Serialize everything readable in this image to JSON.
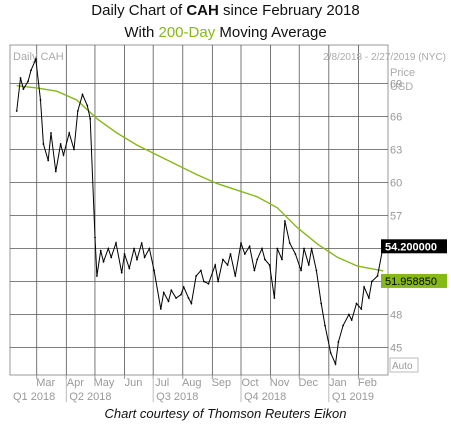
{
  "title": {
    "line1_prefix": "Daily Chart of ",
    "line1_ticker": "CAH",
    "line1_suffix": " since February 2018",
    "line2_prefix": "With ",
    "line2_highlight": "200-Day",
    "line2_suffix": " Moving Average"
  },
  "credit": "Chart courtesy of Thomson Reuters Eikon",
  "chart_data": {
    "type": "line",
    "panel_label": "Daily CAH",
    "date_range": "2/8/2018 - 2/27/2019 (NYC)",
    "ylabel_top": "Price",
    "ylabel_unit": "USD",
    "auto_label": "Auto",
    "ylim": [
      42.5,
      72.5
    ],
    "yticks": [
      45,
      48,
      51,
      54,
      57,
      60,
      63,
      66,
      69
    ],
    "grid": true,
    "months": [
      "Mar",
      "Apr",
      "May",
      "Jun",
      "Jul",
      "Aug",
      "Sep",
      "Oct",
      "Nov",
      "Dec",
      "Jan",
      "Feb"
    ],
    "quarters": [
      "Q1 2018",
      "Q2 2018",
      "Q3 2018",
      "Q4 2018",
      "Q1 2019"
    ],
    "last_price_label": "54.200000",
    "ma_label": "51.958850",
    "colors": {
      "price": "#000000",
      "ma": "#86b818",
      "grid": "#555555"
    },
    "series": [
      {
        "name": "CAH",
        "x": [
          "2018-02-08",
          "2018-02-12",
          "2018-02-15",
          "2018-02-20",
          "2018-02-23",
          "2018-02-28",
          "2018-03-05",
          "2018-03-08",
          "2018-03-13",
          "2018-03-16",
          "2018-03-21",
          "2018-03-26",
          "2018-03-29",
          "2018-04-04",
          "2018-04-09",
          "2018-04-13",
          "2018-04-18",
          "2018-04-23",
          "2018-04-26",
          "2018-05-01",
          "2018-05-03",
          "2018-05-07",
          "2018-05-10",
          "2018-05-15",
          "2018-05-18",
          "2018-05-23",
          "2018-05-29",
          "2018-06-01",
          "2018-06-06",
          "2018-06-11",
          "2018-06-14",
          "2018-06-19",
          "2018-06-22",
          "2018-06-27",
          "2018-07-02",
          "2018-07-09",
          "2018-07-12",
          "2018-07-17",
          "2018-07-20",
          "2018-07-25",
          "2018-07-30",
          "2018-08-02",
          "2018-08-07",
          "2018-08-10",
          "2018-08-15",
          "2018-08-20",
          "2018-08-23",
          "2018-08-28",
          "2018-09-04",
          "2018-09-07",
          "2018-09-12",
          "2018-09-17",
          "2018-09-20",
          "2018-09-25",
          "2018-10-01",
          "2018-10-05",
          "2018-10-10",
          "2018-10-15",
          "2018-10-18",
          "2018-10-23",
          "2018-10-26",
          "2018-10-31",
          "2018-11-05",
          "2018-11-08",
          "2018-11-13",
          "2018-11-16",
          "2018-11-21",
          "2018-11-27",
          "2018-12-03",
          "2018-12-06",
          "2018-12-11",
          "2018-12-14",
          "2018-12-19",
          "2018-12-24",
          "2018-12-28",
          "2019-01-03",
          "2019-01-08",
          "2019-01-11",
          "2019-01-16",
          "2019-01-22",
          "2019-01-25",
          "2019-01-30",
          "2019-02-04",
          "2019-02-07",
          "2019-02-12",
          "2019-02-15",
          "2019-02-21",
          "2019-02-27"
        ],
        "values": [
          66.5,
          69.5,
          68.5,
          69.2,
          70.2,
          71.2,
          67.5,
          63.5,
          62.0,
          64.5,
          61.0,
          63.5,
          62.5,
          64.5,
          63.0,
          66.5,
          68.0,
          67.0,
          65.8,
          55.0,
          51.5,
          53.8,
          52.8,
          54.0,
          53.2,
          54.5,
          51.8,
          53.5,
          52.2,
          54.0,
          53.0,
          54.5,
          53.2,
          54.0,
          52.0,
          48.5,
          50.0,
          49.2,
          50.2,
          49.5,
          49.8,
          50.5,
          49.5,
          49.0,
          51.5,
          52.0,
          51.0,
          50.8,
          52.5,
          51.0,
          53.0,
          52.5,
          53.5,
          51.5,
          54.5,
          53.5,
          54.2,
          52.0,
          53.0,
          54.0,
          53.0,
          52.5,
          49.5,
          54.0,
          53.0,
          56.5,
          54.5,
          53.5,
          52.0,
          54.0,
          52.5,
          54.0,
          52.0,
          49.0,
          47.0,
          44.5,
          43.5,
          45.5,
          47.0,
          48.0,
          47.5,
          49.0,
          48.5,
          50.5,
          49.5,
          51.0,
          51.5,
          54.2
        ]
      },
      {
        "name": "200-Day Moving Average",
        "x": [
          "2018-02-08",
          "2018-03-01",
          "2018-03-22",
          "2018-04-12",
          "2018-05-03",
          "2018-05-24",
          "2018-06-14",
          "2018-07-05",
          "2018-07-26",
          "2018-08-16",
          "2018-09-06",
          "2018-09-27",
          "2018-10-18",
          "2018-11-08",
          "2018-11-29",
          "2018-12-20",
          "2019-01-10",
          "2019-01-31",
          "2019-02-27"
        ],
        "values": [
          68.8,
          68.6,
          68.3,
          67.5,
          65.8,
          64.5,
          63.4,
          62.5,
          61.6,
          60.7,
          59.9,
          59.3,
          58.7,
          57.7,
          55.9,
          54.4,
          53.2,
          52.4,
          51.96
        ]
      }
    ]
  }
}
